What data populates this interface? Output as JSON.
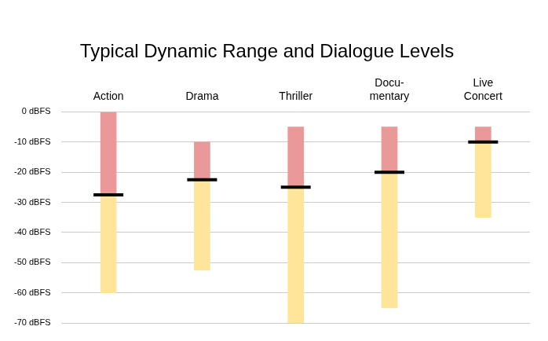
{
  "chart_data": {
    "type": "bar",
    "title": "Typical Dynamic Range and Dialogue Levels",
    "categories": [
      "Action",
      "Drama",
      "Thriller",
      "Docu-\nmentary",
      "Live\nConcert"
    ],
    "series": [
      {
        "type": "bar",
        "color": "#ffe599",
        "values": [
          -60,
          -52.5,
          -70,
          -65,
          -35
        ]
      },
      {
        "type": "bar",
        "color": "#ea9999",
        "values": [
          0,
          -10,
          -5,
          -5,
          -5
        ]
      },
      {
        "type": "line",
        "color": "#000000",
        "marker": "line",
        "values": [
          -27.5,
          -22.5,
          -25,
          -20,
          -10
        ]
      }
    ],
    "ylim": [
      -70,
      0
    ],
    "yticks": [
      {
        "value": 0,
        "label": "0 dBFS"
      },
      {
        "value": -10,
        "label": "-10 dBFS"
      },
      {
        "value": -20,
        "label": "-20 dBFS"
      },
      {
        "value": -30,
        "label": "-30 dBFS"
      },
      {
        "value": -40,
        "label": "-40 dBFS"
      },
      {
        "value": -50,
        "label": "-50 dBFS"
      },
      {
        "value": -60,
        "label": "-60 dBFS"
      },
      {
        "value": -70,
        "label": "-70 dBFS"
      }
    ],
    "grid": true
  }
}
